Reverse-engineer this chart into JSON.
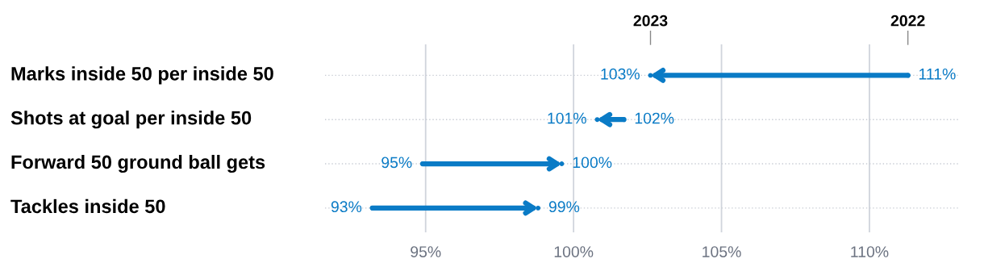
{
  "chart_data": {
    "type": "scatter",
    "orientation": "horizontal",
    "categories": [
      "Marks inside 50 per inside 50",
      "Shots at goal per inside 50",
      "Forward 50 ground ball gets",
      "Tackles inside 50"
    ],
    "series": [
      {
        "name": "2022",
        "color": "#0a7bc6",
        "values": [
          111.3,
          101.7,
          94.9,
          93.2
        ],
        "value_labels": [
          "111%",
          "102%",
          "95%",
          "93%"
        ]
      },
      {
        "name": "2023",
        "color": "#0a7bc6",
        "values": [
          102.6,
          100.8,
          99.6,
          98.8
        ],
        "value_labels": [
          "103%",
          "101%",
          "100%",
          "99%"
        ]
      }
    ],
    "xlim": [
      91.6,
      113
    ],
    "xticks": [
      {
        "value": 95,
        "label": "95%"
      },
      {
        "value": 100,
        "label": "100%"
      },
      {
        "value": 105,
        "label": "105%"
      },
      {
        "value": 110,
        "label": "110%"
      }
    ],
    "grid": "x"
  }
}
